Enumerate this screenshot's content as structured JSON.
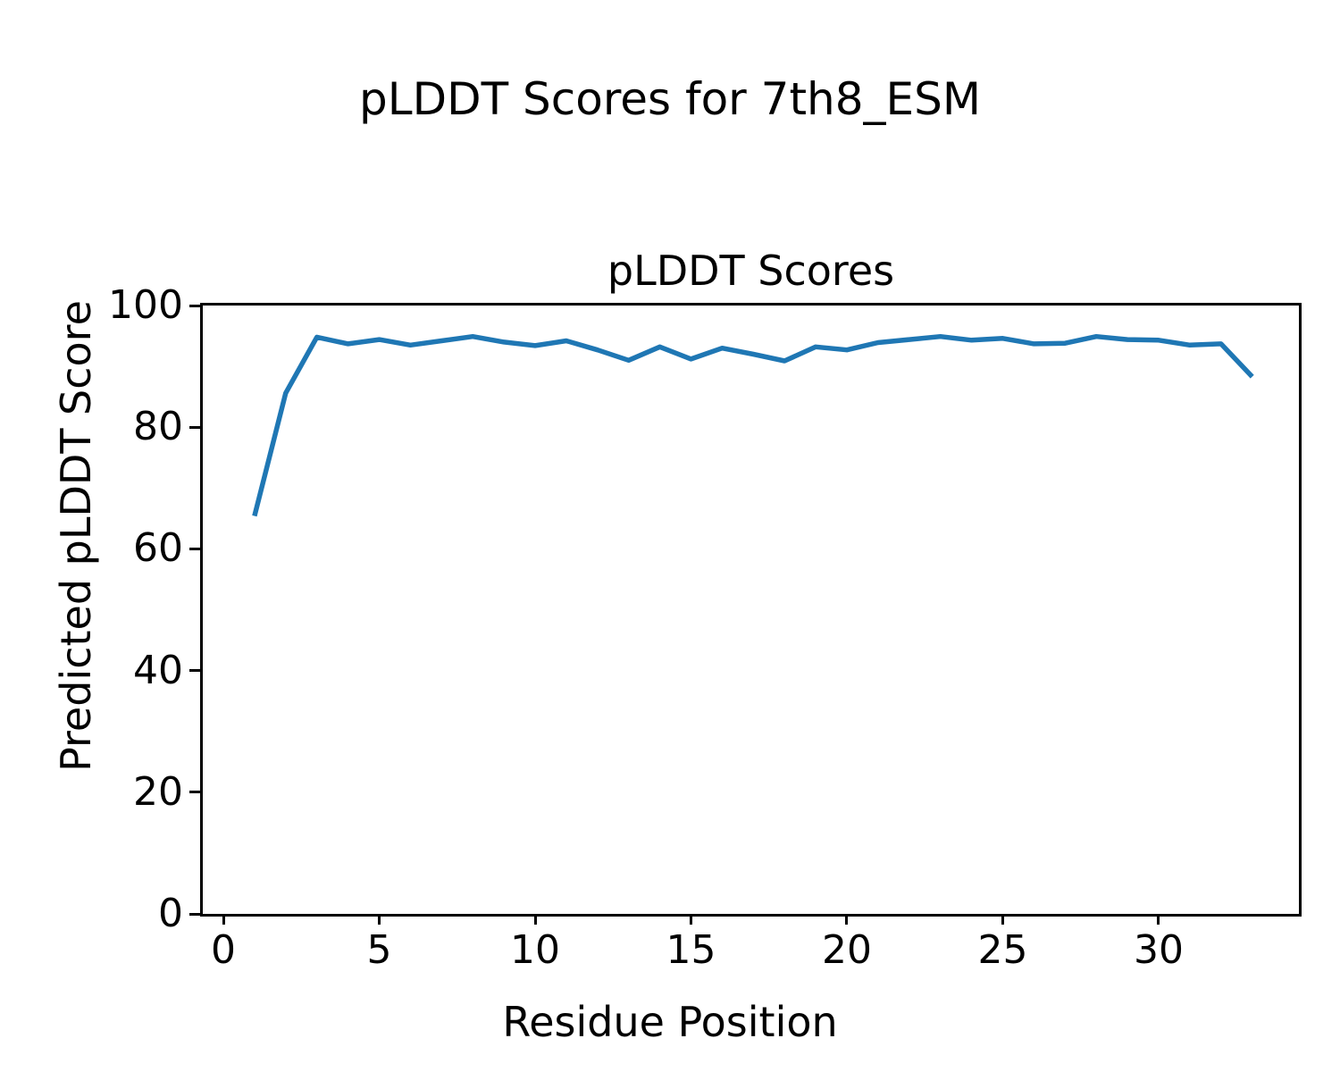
{
  "figure": {
    "suptitle": "pLDDT Scores for 7th8_ESM",
    "axes_title": "pLDDT Scores",
    "xlabel": "Residue Position",
    "ylabel": "Predicted pLDDT Score",
    "background_color": "#ffffff",
    "text_color": "#000000",
    "line_color": "#1f77b4"
  },
  "chart_data": {
    "type": "line",
    "title": "pLDDT Scores",
    "suptitle": "pLDDT Scores for 7th8_ESM",
    "xlabel": "Residue Position",
    "ylabel": "Predicted pLDDT Score",
    "series": [
      {
        "name": "pLDDT",
        "color": "#1f77b4",
        "x": [
          1,
          2,
          3,
          4,
          5,
          6,
          7,
          8,
          9,
          10,
          11,
          12,
          13,
          14,
          15,
          16,
          17,
          18,
          19,
          20,
          21,
          22,
          23,
          24,
          25,
          26,
          27,
          28,
          29,
          30,
          31,
          32,
          33
        ],
        "y": [
          65.4,
          85.6,
          94.8,
          93.7,
          94.4,
          93.5,
          94.2,
          94.9,
          94.0,
          93.4,
          94.2,
          92.7,
          91.0,
          93.2,
          91.2,
          93.0,
          92.0,
          90.9,
          93.2,
          92.7,
          93.9,
          94.4,
          94.9,
          94.3,
          94.6,
          93.7,
          93.8,
          94.9,
          94.4,
          94.3,
          93.5,
          93.7,
          88.3
        ]
      }
    ],
    "xlim": [
      -0.66,
      34.5
    ],
    "ylim": [
      0,
      100
    ],
    "xticks": [
      0,
      5,
      10,
      15,
      20,
      25,
      30
    ],
    "yticks": [
      0,
      20,
      40,
      60,
      80,
      100
    ],
    "grid": false,
    "legend": null,
    "line_width": 5.5
  }
}
